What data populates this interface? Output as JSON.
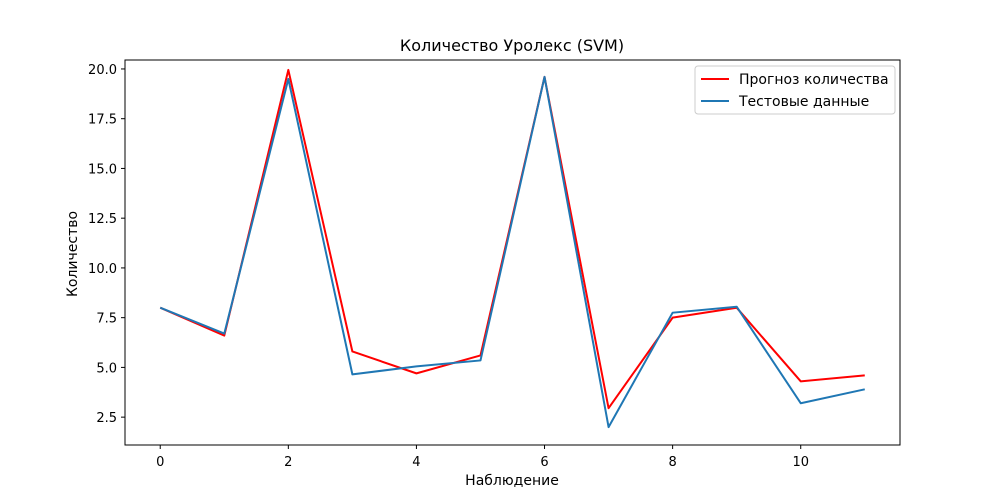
{
  "chart_data": {
    "type": "line",
    "title": "Количество Уролекс (SVM)",
    "xlabel": "Наблюдение",
    "ylabel": "Количество",
    "xlim": [
      -0.55,
      11.55
    ],
    "ylim": [
      1.1,
      20.45
    ],
    "x": [
      0,
      1,
      2,
      3,
      4,
      5,
      6,
      7,
      8,
      9,
      10,
      11
    ],
    "xticks": [
      0,
      2,
      4,
      6,
      8,
      10
    ],
    "xtick_labels": [
      "0",
      "2",
      "4",
      "6",
      "8",
      "10"
    ],
    "yticks": [
      2.5,
      5.0,
      7.5,
      10.0,
      12.5,
      15.0,
      17.5,
      20.0
    ],
    "ytick_labels": [
      "2.5",
      "5.0",
      "7.5",
      "10.0",
      "12.5",
      "15.0",
      "17.5",
      "20.0"
    ],
    "grid": false,
    "legend_position": "top-right",
    "series": [
      {
        "name": "Прогноз количества",
        "color": "#ff0000",
        "values": [
          8.0,
          6.6,
          19.95,
          5.8,
          4.7,
          5.6,
          19.6,
          2.95,
          7.5,
          8.0,
          4.3,
          4.6
        ]
      },
      {
        "name": "Тестовые данные",
        "color": "#1f77b4",
        "values": [
          8.0,
          6.7,
          19.5,
          4.65,
          5.05,
          5.35,
          19.6,
          2.0,
          7.75,
          8.05,
          3.2,
          3.9
        ]
      }
    ]
  }
}
